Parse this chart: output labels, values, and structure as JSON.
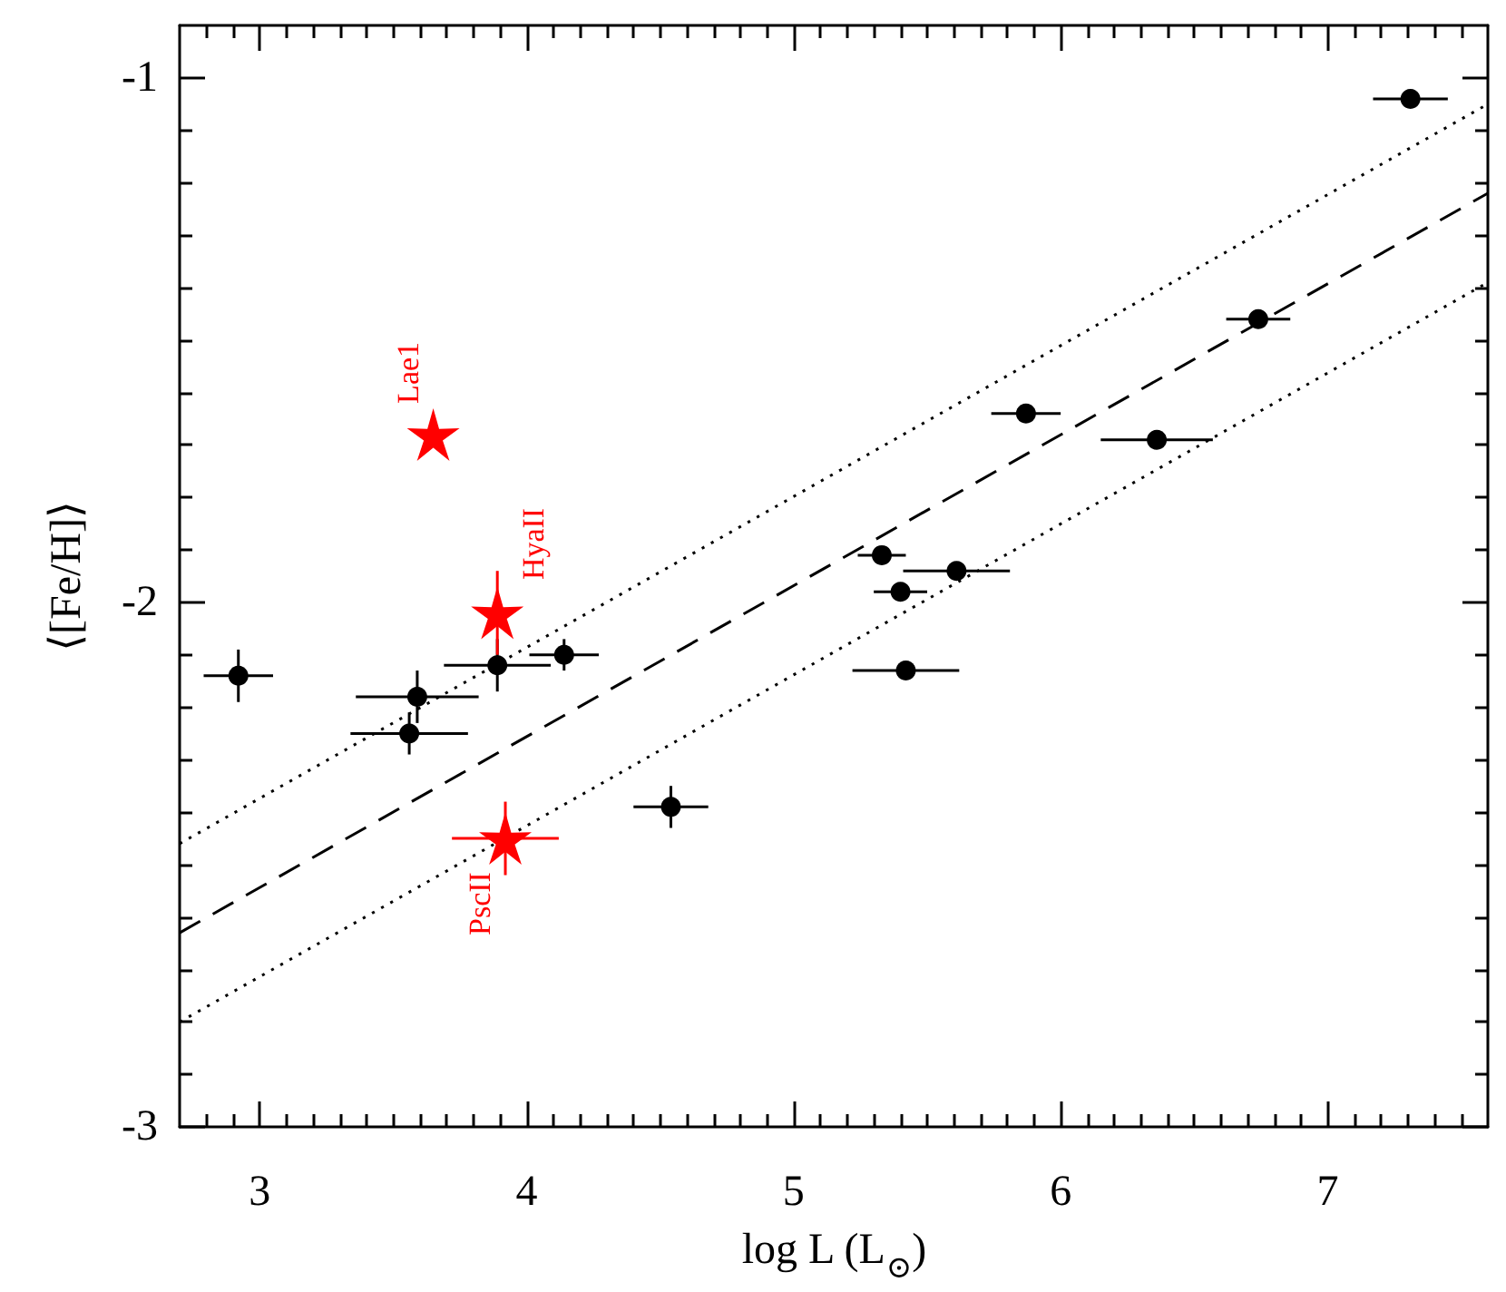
{
  "chart_data": {
    "type": "scatter",
    "xlabel": "log L (L$_{⊙}$)",
    "ylabel": "⟨[Fe/H]⟩",
    "xlim": [
      2.7,
      7.6
    ],
    "ylim": [
      -3,
      -0.9
    ],
    "xticks": [
      {
        "value": 2.8,
        "label": null
      },
      {
        "value": 2.9,
        "label": null
      },
      3,
      {
        "value": 3.1,
        "label": null
      },
      {
        "value": 3.2,
        "label": null
      },
      {
        "value": 3.3,
        "label": null
      },
      {
        "value": 3.4,
        "label": null
      },
      {
        "value": 3.5,
        "label": null
      },
      {
        "value": 3.6,
        "label": null
      },
      {
        "value": 3.7,
        "label": null
      },
      {
        "value": 3.8,
        "label": null
      },
      {
        "value": 3.9,
        "label": null
      },
      4,
      {
        "value": 4.1,
        "label": null
      },
      {
        "value": 4.2,
        "label": null
      },
      {
        "value": 4.3,
        "label": null
      },
      {
        "value": 4.4,
        "label": null
      },
      {
        "value": 4.5,
        "label": null
      },
      {
        "value": 4.6,
        "label": null
      },
      {
        "value": 4.7,
        "label": null
      },
      {
        "value": 4.8,
        "label": null
      },
      {
        "value": 4.9,
        "label": null
      },
      5,
      {
        "value": 5.1,
        "label": null
      },
      {
        "value": 5.2,
        "label": null
      },
      {
        "value": 5.3,
        "label": null
      },
      {
        "value": 5.4,
        "label": null
      },
      {
        "value": 5.5,
        "label": null
      },
      {
        "value": 5.6,
        "label": null
      },
      {
        "value": 5.7,
        "label": null
      },
      {
        "value": 5.8,
        "label": null
      },
      {
        "value": 5.9,
        "label": null
      },
      6,
      {
        "value": 6.1,
        "label": null
      },
      {
        "value": 6.2,
        "label": null
      },
      {
        "value": 6.3,
        "label": null
      },
      {
        "value": 6.4,
        "label": null
      },
      {
        "value": 6.5,
        "label": null
      },
      {
        "value": 6.6,
        "label": null
      },
      {
        "value": 6.7,
        "label": null
      },
      {
        "value": 6.8,
        "label": null
      },
      {
        "value": 6.9,
        "label": null
      },
      7,
      {
        "value": 7.1,
        "label": null
      },
      {
        "value": 7.2,
        "label": null
      },
      {
        "value": 7.3,
        "label": null
      },
      {
        "value": 7.4,
        "label": null
      },
      {
        "value": 7.5,
        "label": null
      }
    ],
    "yticks": [
      -3,
      {
        "value": -2.9,
        "label": null
      },
      {
        "value": -2.8,
        "label": null
      },
      {
        "value": -2.7,
        "label": null
      },
      {
        "value": -2.6,
        "label": null
      },
      {
        "value": -2.5,
        "label": null
      },
      {
        "value": -2.4,
        "label": null
      },
      {
        "value": -2.3,
        "label": null
      },
      {
        "value": -2.2,
        "label": null
      },
      {
        "value": -2.1,
        "label": null
      },
      -2,
      {
        "value": -1.9,
        "label": null
      },
      {
        "value": -1.8,
        "label": null
      },
      {
        "value": -1.7,
        "label": null
      },
      {
        "value": -1.6,
        "label": null
      },
      {
        "value": -1.5,
        "label": null
      },
      {
        "value": -1.4,
        "label": null
      },
      {
        "value": -1.3,
        "label": null
      },
      {
        "value": -1.2,
        "label": null
      },
      {
        "value": -1.1,
        "label": null
      },
      -1
    ],
    "series": [
      {
        "type": "line",
        "color": "#000000",
        "line_style": "dotted",
        "marker": "none",
        "x": [
          2.7,
          7.6
        ],
        "values": [
          -2.46,
          -1.05
        ]
      },
      {
        "type": "line",
        "color": "#000000",
        "line_style": "dashed",
        "marker": "none",
        "x": [
          2.7,
          7.6
        ],
        "values": [
          -2.63,
          -1.22
        ]
      },
      {
        "type": "line",
        "color": "#000000",
        "line_style": "dotted",
        "marker": "none",
        "x": [
          2.7,
          7.6
        ],
        "values": [
          -2.8,
          -1.39
        ]
      },
      {
        "type": "scatter",
        "color": "#000000",
        "marker": "circle",
        "x": [
          2.92,
          3.56,
          3.59,
          3.89,
          4.14,
          4.54,
          5.33,
          5.4,
          5.42,
          5.61,
          5.87,
          6.36,
          6.74,
          7.31
        ],
        "values": [
          -2.14,
          -2.25,
          -2.18,
          -2.12,
          -2.1,
          -2.39,
          -1.91,
          -1.98,
          -2.13,
          -1.94,
          -1.64,
          -1.69,
          -1.46,
          -1.04
        ],
        "xerrors": [
          0.13,
          0.22,
          0.23,
          0.2,
          0.13,
          0.14,
          0.09,
          0.1,
          0.2,
          0.2,
          0.13,
          0.21,
          0.12,
          0.14
        ],
        "errors": [
          0.05,
          0.04,
          0.05,
          0.05,
          0.03,
          0.04,
          null,
          null,
          null,
          null,
          null,
          null,
          null,
          null
        ]
      },
      {
        "type": "scatter",
        "color": "#ff0000",
        "marker": "star",
        "x": [
          3.65,
          3.89,
          3.92
        ],
        "values": [
          -1.68,
          -2.02,
          -2.45
        ],
        "xerrors": [
          null,
          null,
          0.2
        ],
        "errors": [
          null,
          0.08,
          0.07
        ]
      }
    ],
    "annotations": [
      {
        "text": "Lae1",
        "x": 3.65,
        "y": -1.68
      },
      {
        "text": "HyaII",
        "x": 3.89,
        "y": -2.02
      },
      {
        "text": "PscII",
        "x": 3.92,
        "y": -2.45
      }
    ]
  }
}
